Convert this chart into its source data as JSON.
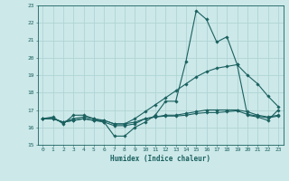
{
  "xlabel": "Humidex (Indice chaleur)",
  "xlim": [
    -0.5,
    23.5
  ],
  "ylim": [
    15,
    23
  ],
  "yticks": [
    15,
    16,
    17,
    18,
    19,
    20,
    21,
    22,
    23
  ],
  "xticks": [
    0,
    1,
    2,
    3,
    4,
    5,
    6,
    7,
    8,
    9,
    10,
    11,
    12,
    13,
    14,
    15,
    16,
    17,
    18,
    19,
    20,
    21,
    22,
    23
  ],
  "bg_color": "#cce8e8",
  "grid_color": "#b0d4d4",
  "line_color": "#1a6060",
  "series": [
    [
      16.5,
      16.6,
      16.2,
      16.7,
      16.7,
      16.5,
      16.3,
      15.5,
      15.5,
      16.0,
      16.3,
      16.7,
      17.5,
      17.5,
      19.8,
      22.7,
      22.2,
      20.9,
      21.2,
      19.6,
      16.7,
      16.6,
      16.4,
      17.0
    ],
    [
      16.5,
      16.5,
      16.3,
      16.4,
      16.5,
      16.4,
      16.3,
      16.1,
      16.1,
      16.2,
      16.5,
      16.6,
      16.65,
      16.65,
      16.7,
      16.8,
      16.85,
      16.85,
      16.9,
      16.95,
      16.75,
      16.65,
      16.55,
      16.65
    ],
    [
      16.5,
      16.5,
      16.3,
      16.5,
      16.6,
      16.5,
      16.4,
      16.2,
      16.2,
      16.5,
      16.9,
      17.3,
      17.7,
      18.1,
      18.5,
      18.9,
      19.2,
      19.4,
      19.5,
      19.6,
      19.0,
      18.5,
      17.8,
      17.2
    ],
    [
      16.5,
      16.5,
      16.3,
      16.4,
      16.5,
      16.4,
      16.4,
      16.2,
      16.2,
      16.3,
      16.5,
      16.6,
      16.7,
      16.7,
      16.8,
      16.9,
      17.0,
      17.0,
      17.0,
      17.0,
      16.9,
      16.7,
      16.6,
      16.7
    ]
  ]
}
